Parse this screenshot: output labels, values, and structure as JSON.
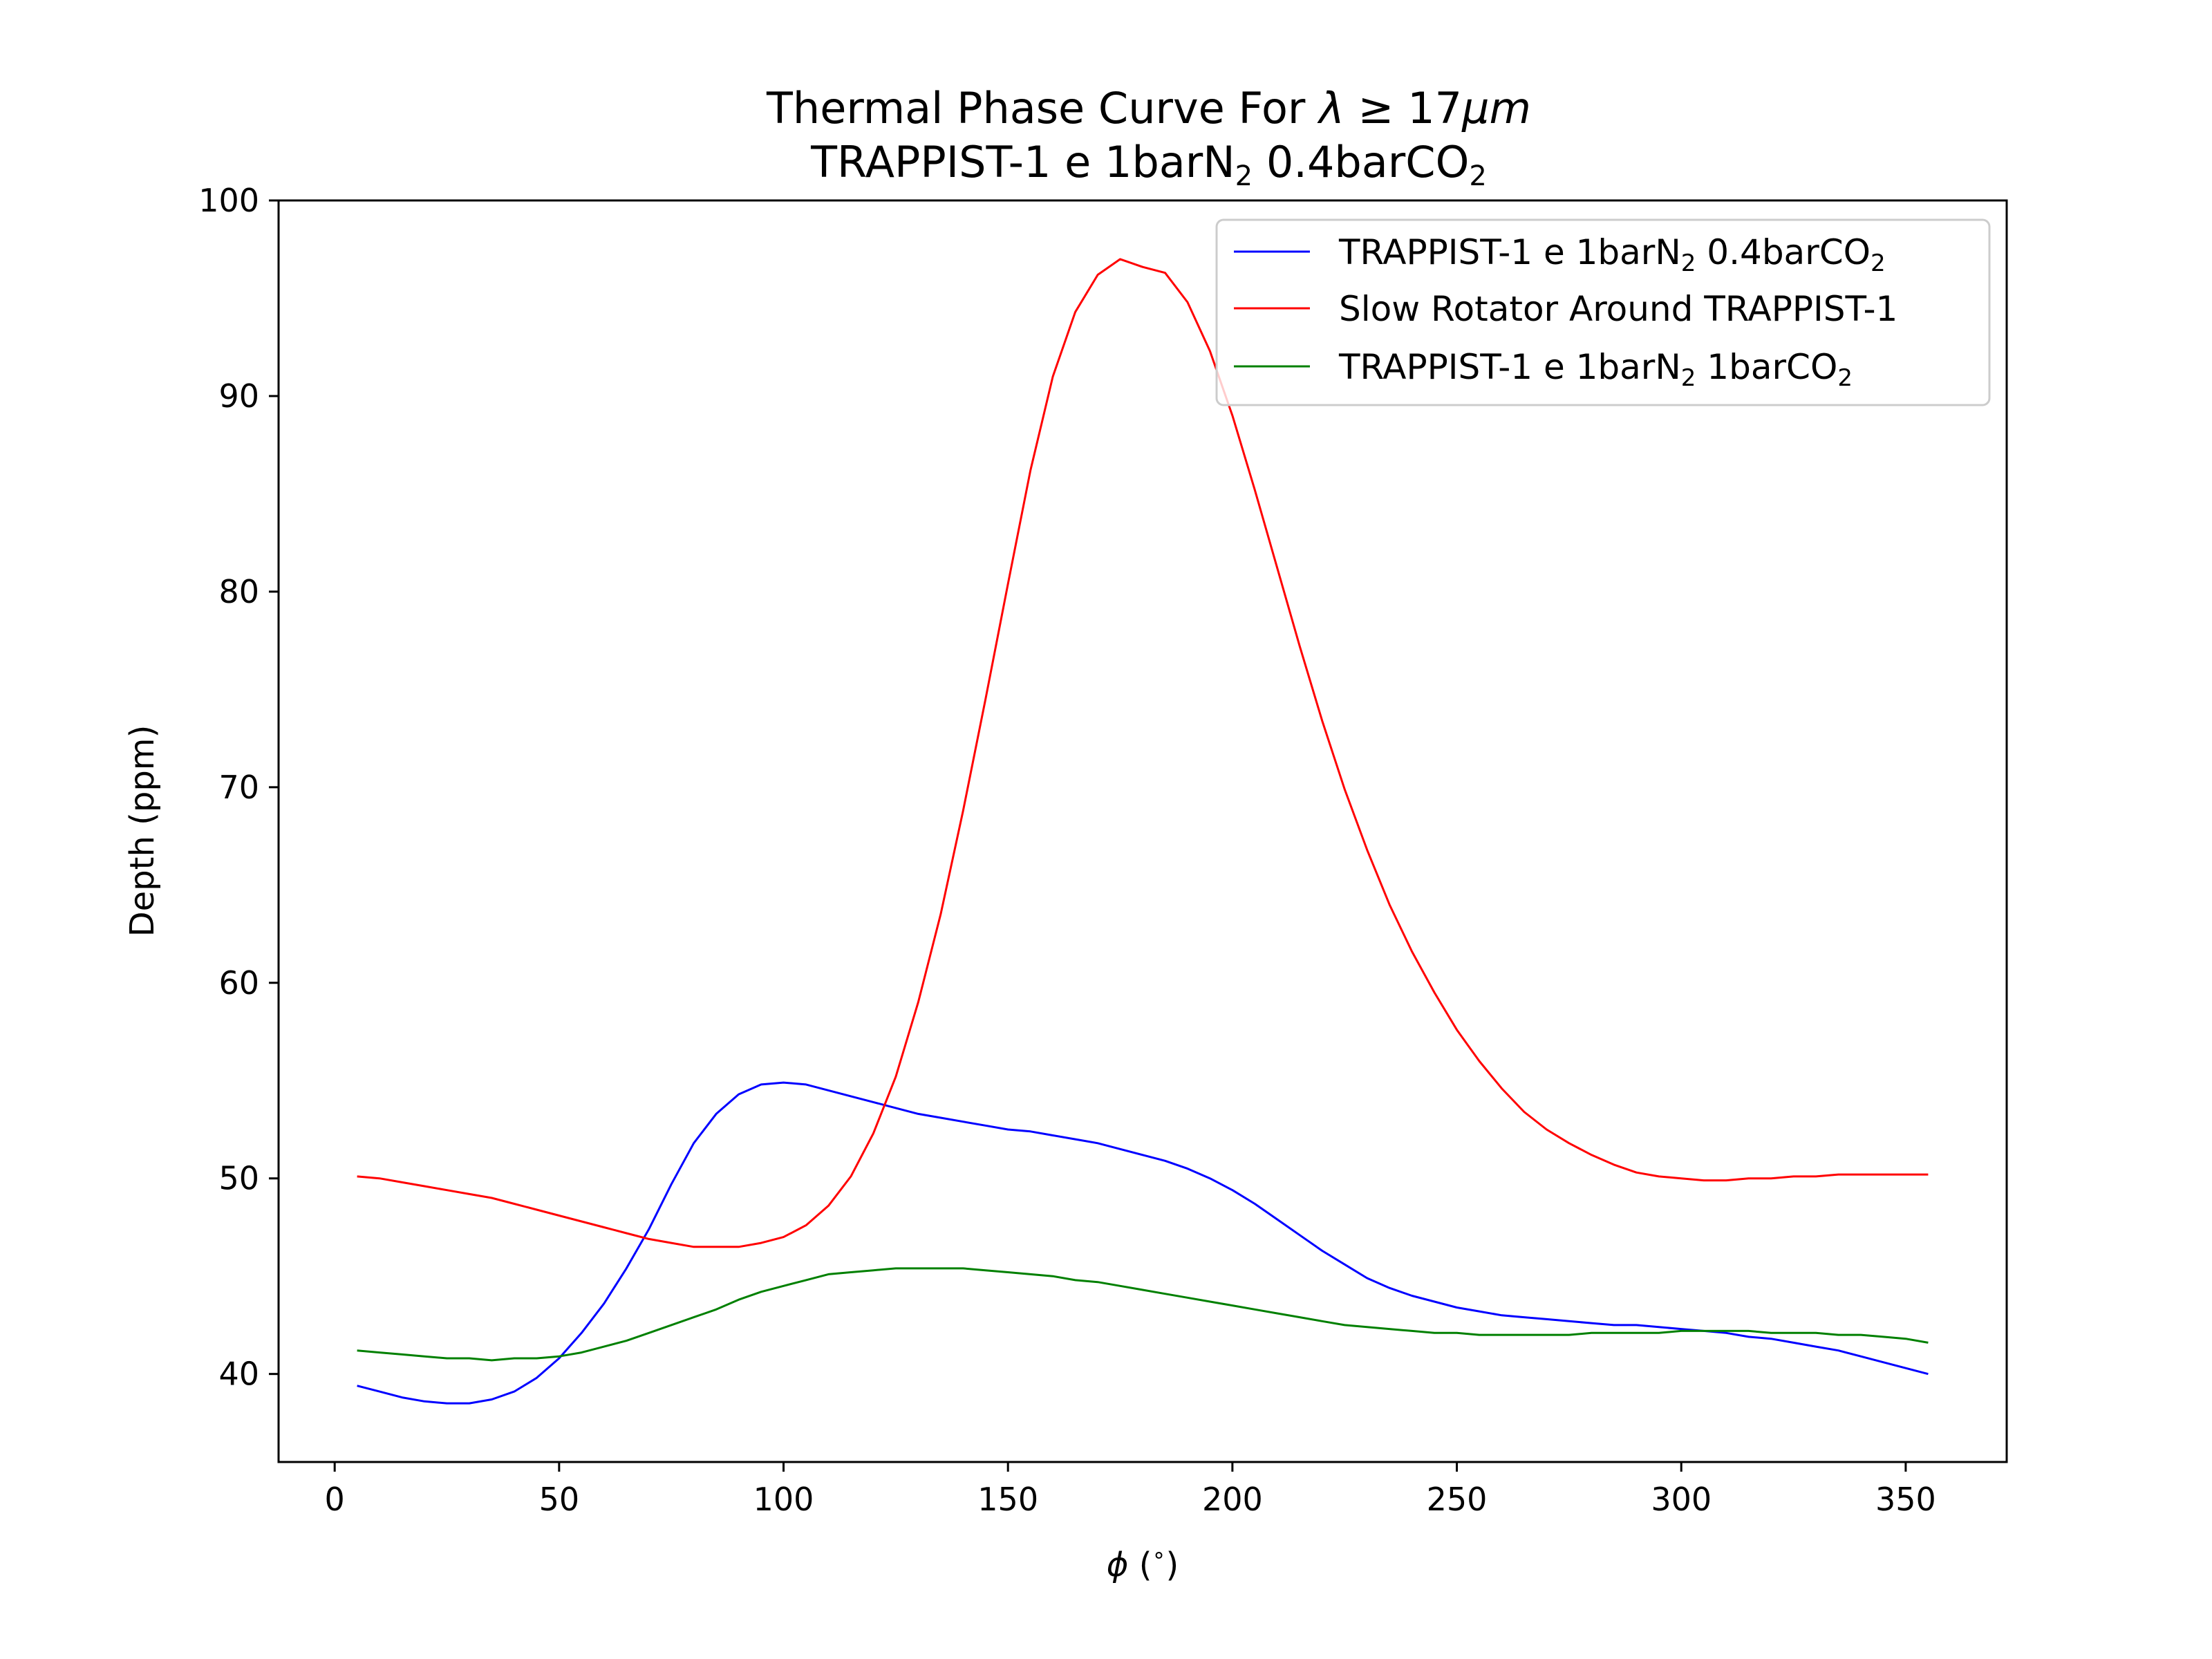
{
  "chart_data": {
    "type": "line",
    "title": {
      "line1_prefix": "Thermal Phase Curve For ",
      "line1_math_lambda": "λ",
      "line1_math_geq": " ≥ 17",
      "line1_math_unit": "μm",
      "line2_main": "TRAPPIST-1 e 1barN",
      "line2_sub1": "2",
      "line2_mid": " 0.4barCO",
      "line2_sub2": "2"
    },
    "xlabel": {
      "symbol": "ϕ",
      "rest": " (",
      "deg": "∘",
      "close": ")"
    },
    "ylabel": "Depth (ppm)",
    "xlim": [
      -12.5,
      372.5
    ],
    "ylim": [
      35.5,
      100
    ],
    "xticks": [
      0,
      50,
      100,
      150,
      200,
      250,
      300,
      350
    ],
    "yticks": [
      40,
      50,
      60,
      70,
      80,
      90,
      100
    ],
    "grid": false,
    "legend_position": "top-right",
    "x": [
      5,
      10,
      15,
      20,
      25,
      30,
      35,
      40,
      45,
      50,
      55,
      60,
      65,
      70,
      75,
      80,
      85,
      90,
      95,
      100,
      105,
      110,
      115,
      120,
      125,
      130,
      135,
      140,
      145,
      150,
      155,
      160,
      165,
      170,
      175,
      180,
      185,
      190,
      195,
      200,
      205,
      210,
      215,
      220,
      225,
      230,
      235,
      240,
      245,
      250,
      255,
      260,
      265,
      270,
      275,
      280,
      285,
      290,
      295,
      300,
      305,
      310,
      315,
      320,
      325,
      330,
      335,
      340,
      345,
      350,
      355
    ],
    "series": [
      {
        "name": {
          "main": "TRAPPIST-1 e 1barN",
          "sub1": "2",
          "mid": " 0.4barCO",
          "sub2": "2"
        },
        "color": "#0000ff",
        "values": [
          39.4,
          39.1,
          38.8,
          38.6,
          38.5,
          38.5,
          38.7,
          39.1,
          39.8,
          40.8,
          42.1,
          43.6,
          45.4,
          47.4,
          49.7,
          51.8,
          53.3,
          54.3,
          54.8,
          54.9,
          54.8,
          54.5,
          54.2,
          53.9,
          53.6,
          53.3,
          53.1,
          52.9,
          52.7,
          52.5,
          52.4,
          52.2,
          52.0,
          51.8,
          51.5,
          51.2,
          50.9,
          50.5,
          50.0,
          49.4,
          48.7,
          47.9,
          47.1,
          46.3,
          45.6,
          44.9,
          44.4,
          44.0,
          43.7,
          43.4,
          43.2,
          43.0,
          42.9,
          42.8,
          42.7,
          42.6,
          42.5,
          42.5,
          42.4,
          42.3,
          42.2,
          42.1,
          41.9,
          41.8,
          41.6,
          41.4,
          41.2,
          40.9,
          40.6,
          40.3,
          40.0
        ]
      },
      {
        "name": "Slow Rotator Around TRAPPIST-1",
        "color": "#ff0000",
        "values": [
          50.1,
          50.0,
          49.8,
          49.6,
          49.4,
          49.2,
          49.0,
          48.7,
          48.4,
          48.1,
          47.8,
          47.5,
          47.2,
          46.9,
          46.7,
          46.5,
          46.5,
          46.5,
          46.7,
          47.0,
          47.6,
          48.6,
          50.1,
          52.3,
          55.2,
          59.0,
          63.5,
          68.8,
          74.5,
          80.4,
          86.2,
          91.0,
          94.3,
          96.2,
          97.0,
          96.6,
          96.3,
          94.8,
          92.3,
          89.0,
          85.2,
          81.2,
          77.2,
          73.4,
          69.9,
          66.8,
          64.0,
          61.6,
          59.5,
          57.6,
          56.0,
          54.6,
          53.4,
          52.5,
          51.8,
          51.2,
          50.7,
          50.3,
          50.1,
          50.0,
          49.9,
          49.9,
          50.0,
          50.0,
          50.1,
          50.1,
          50.2,
          50.2,
          50.2,
          50.2,
          50.2
        ]
      },
      {
        "name": {
          "main": "TRAPPIST-1 e 1barN",
          "sub1": "2",
          "mid": " 1barCO",
          "sub2": "2"
        },
        "color": "#008000",
        "values": [
          41.2,
          41.1,
          41.0,
          40.9,
          40.8,
          40.8,
          40.7,
          40.8,
          40.8,
          40.9,
          41.1,
          41.4,
          41.7,
          42.1,
          42.5,
          42.9,
          43.3,
          43.8,
          44.2,
          44.5,
          44.8,
          45.1,
          45.2,
          45.3,
          45.4,
          45.4,
          45.4,
          45.4,
          45.3,
          45.2,
          45.1,
          45.0,
          44.8,
          44.7,
          44.5,
          44.3,
          44.1,
          43.9,
          43.7,
          43.5,
          43.3,
          43.1,
          42.9,
          42.7,
          42.5,
          42.4,
          42.3,
          42.2,
          42.1,
          42.1,
          42.0,
          42.0,
          42.0,
          42.0,
          42.0,
          42.1,
          42.1,
          42.1,
          42.1,
          42.2,
          42.2,
          42.2,
          42.2,
          42.1,
          42.1,
          42.1,
          42.0,
          42.0,
          41.9,
          41.8,
          41.6
        ]
      }
    ]
  }
}
